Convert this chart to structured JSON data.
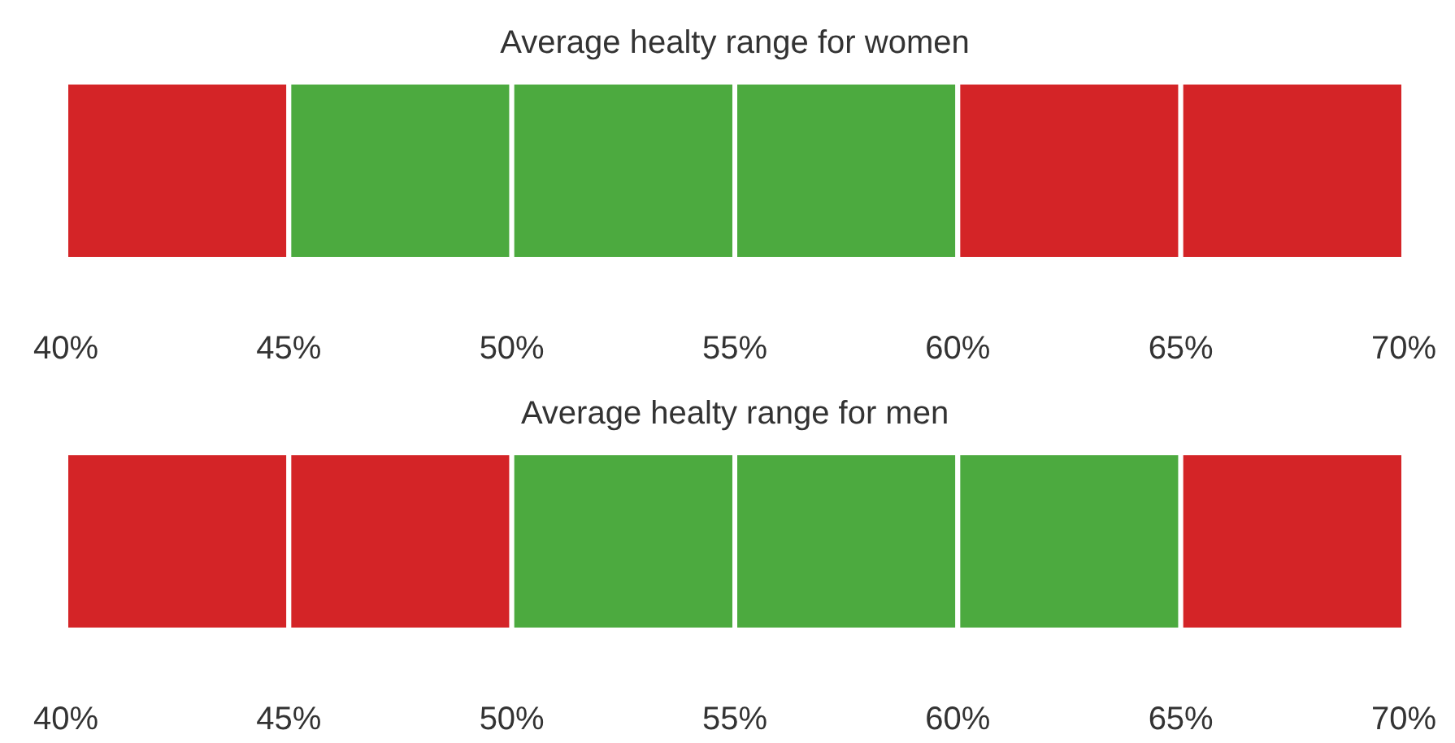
{
  "chart_data": [
    {
      "type": "bar",
      "title": "Average healty range for women",
      "orientation": "horizontal",
      "categories": [
        null
      ],
      "xlim": [
        40,
        70
      ],
      "xticks": [
        {
          "value": 40,
          "label": "40%"
        },
        {
          "value": 45,
          "label": "45%"
        },
        {
          "value": 50,
          "label": "50%"
        },
        {
          "value": 55,
          "label": "55%"
        },
        {
          "value": 60,
          "label": "60%"
        },
        {
          "value": 65,
          "label": "65%"
        },
        {
          "value": 70,
          "label": "70%"
        }
      ],
      "tick_labels": "x",
      "series": [
        {
          "color": "#d42427",
          "base": [
            40
          ],
          "values": [
            5
          ]
        },
        {
          "color": "#4caa3f",
          "base": [
            45
          ],
          "values": [
            5
          ]
        },
        {
          "color": "#4caa3f",
          "base": [
            50
          ],
          "values": [
            5
          ]
        },
        {
          "color": "#4caa3f",
          "base": [
            55
          ],
          "values": [
            5
          ]
        },
        {
          "color": "#d42427",
          "base": [
            60
          ],
          "values": [
            5
          ]
        },
        {
          "color": "#d42427",
          "base": [
            65
          ],
          "values": [
            5
          ]
        }
      ]
    },
    {
      "type": "bar",
      "title": "Average healty range for men",
      "orientation": "horizontal",
      "categories": [
        null
      ],
      "xlim": [
        40,
        70
      ],
      "xticks": [
        {
          "value": 40,
          "label": "40%"
        },
        {
          "value": 45,
          "label": "45%"
        },
        {
          "value": 50,
          "label": "50%"
        },
        {
          "value": 55,
          "label": "55%"
        },
        {
          "value": 60,
          "label": "60%"
        },
        {
          "value": 65,
          "label": "65%"
        },
        {
          "value": 70,
          "label": "70%"
        }
      ],
      "tick_labels": "x",
      "series": [
        {
          "color": "#d42427",
          "base": [
            40
          ],
          "values": [
            5
          ]
        },
        {
          "color": "#d42427",
          "base": [
            45
          ],
          "values": [
            5
          ]
        },
        {
          "color": "#4caa3f",
          "base": [
            50
          ],
          "values": [
            5
          ]
        },
        {
          "color": "#4caa3f",
          "base": [
            55
          ],
          "values": [
            5
          ]
        },
        {
          "color": "#4caa3f",
          "base": [
            60
          ],
          "values": [
            5
          ]
        },
        {
          "color": "#d42427",
          "base": [
            65
          ],
          "values": [
            5
          ]
        }
      ]
    }
  ]
}
